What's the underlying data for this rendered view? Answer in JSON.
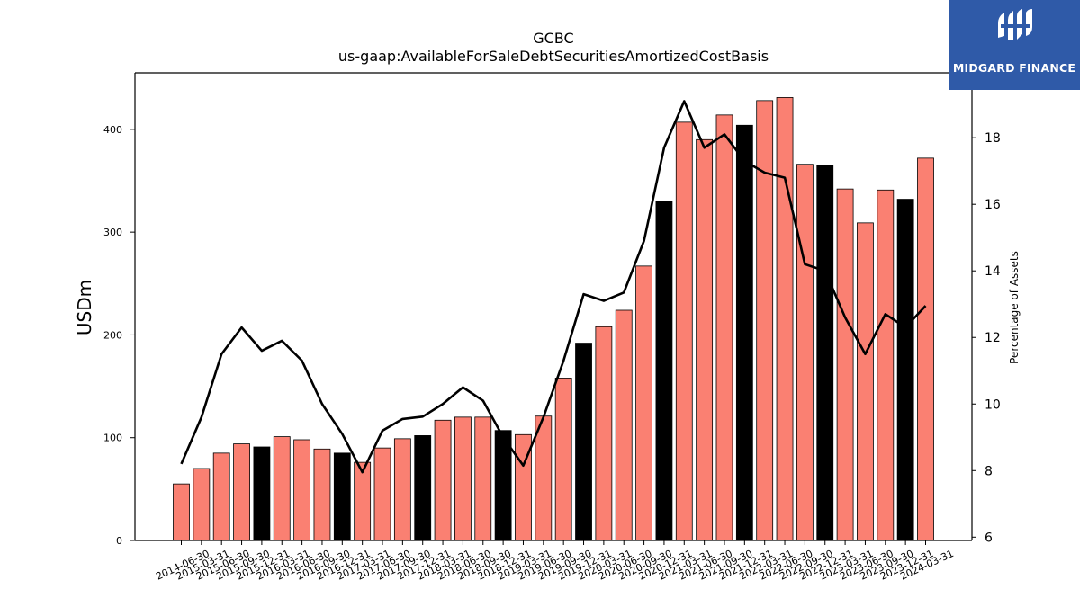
{
  "chart_data": {
    "type": "bar",
    "title": "GCBC",
    "subtitle": "us-gaap:AvailableForSaleDebtSecuritiesAmortizedCostBasis",
    "ylabel": "USDm",
    "y2label": "Percentage of Assets",
    "ylim": [
      0,
      455
    ],
    "y2lim": [
      5.9,
      19.95
    ],
    "yticks": [
      0,
      100,
      200,
      300,
      400
    ],
    "y2ticks": [
      6,
      8,
      10,
      12,
      14,
      16,
      18
    ],
    "categories": [
      "2014-06-30",
      "2015-03-31",
      "2015-06-30",
      "2015-09-30",
      "2015-12-31",
      "2016-03-31",
      "2016-06-30",
      "2016-09-30",
      "2016-12-31",
      "2017-03-31",
      "2017-06-30",
      "2017-09-30",
      "2017-12-31",
      "2018-03-31",
      "2018-06-30",
      "2018-09-30",
      "2018-12-31",
      "2019-03-31",
      "2019-06-30",
      "2019-09-30",
      "2019-12-31",
      "2020-03-31",
      "2020-06-30",
      "2020-09-30",
      "2020-12-31",
      "2021-03-31",
      "2021-06-30",
      "2021-09-30",
      "2021-12-31",
      "2022-03-31",
      "2022-06-30",
      "2022-09-30",
      "2022-12-31",
      "2023-03-31",
      "2023-06-30",
      "2023-09-30",
      "2023-12-31",
      "2024-03-31"
    ],
    "series": [
      {
        "values": [
          55,
          70,
          85,
          94,
          91,
          101,
          98,
          89,
          85,
          76,
          90,
          99,
          102,
          117,
          120,
          120,
          107,
          103,
          121,
          158,
          192,
          208,
          224,
          267,
          330,
          407,
          390,
          414,
          404,
          428,
          431,
          366,
          365,
          342,
          309,
          341,
          332,
          372
        ],
        "colors": [
          "#fa8072",
          "#fa8072",
          "#fa8072",
          "#fa8072",
          "#000000",
          "#fa8072",
          "#fa8072",
          "#fa8072",
          "#000000",
          "#fa8072",
          "#fa8072",
          "#fa8072",
          "#000000",
          "#fa8072",
          "#fa8072",
          "#fa8072",
          "#000000",
          "#fa8072",
          "#fa8072",
          "#fa8072",
          "#000000",
          "#fa8072",
          "#fa8072",
          "#fa8072",
          "#000000",
          "#fa8072",
          "#fa8072",
          "#fa8072",
          "#000000",
          "#fa8072",
          "#fa8072",
          "#fa8072",
          "#000000",
          "#fa8072",
          "#fa8072",
          "#fa8072",
          "#000000",
          "#fa8072"
        ]
      },
      {
        "type": "line",
        "axis": "right",
        "color": "#000000",
        "values": [
          8.2,
          9.6,
          11.5,
          12.3,
          11.6,
          11.9,
          11.3,
          10.0,
          9.1,
          7.95,
          9.2,
          9.55,
          9.62,
          10.0,
          10.5,
          10.1,
          9.0,
          8.15,
          9.6,
          11.3,
          13.3,
          13.1,
          13.35,
          14.9,
          17.7,
          19.1,
          17.7,
          18.1,
          17.3,
          16.95,
          16.8,
          14.2,
          14.0,
          12.6,
          11.5,
          12.7,
          12.3,
          12.95
        ]
      }
    ]
  },
  "logo": {
    "text": "MIDGARD FINANCE"
  }
}
